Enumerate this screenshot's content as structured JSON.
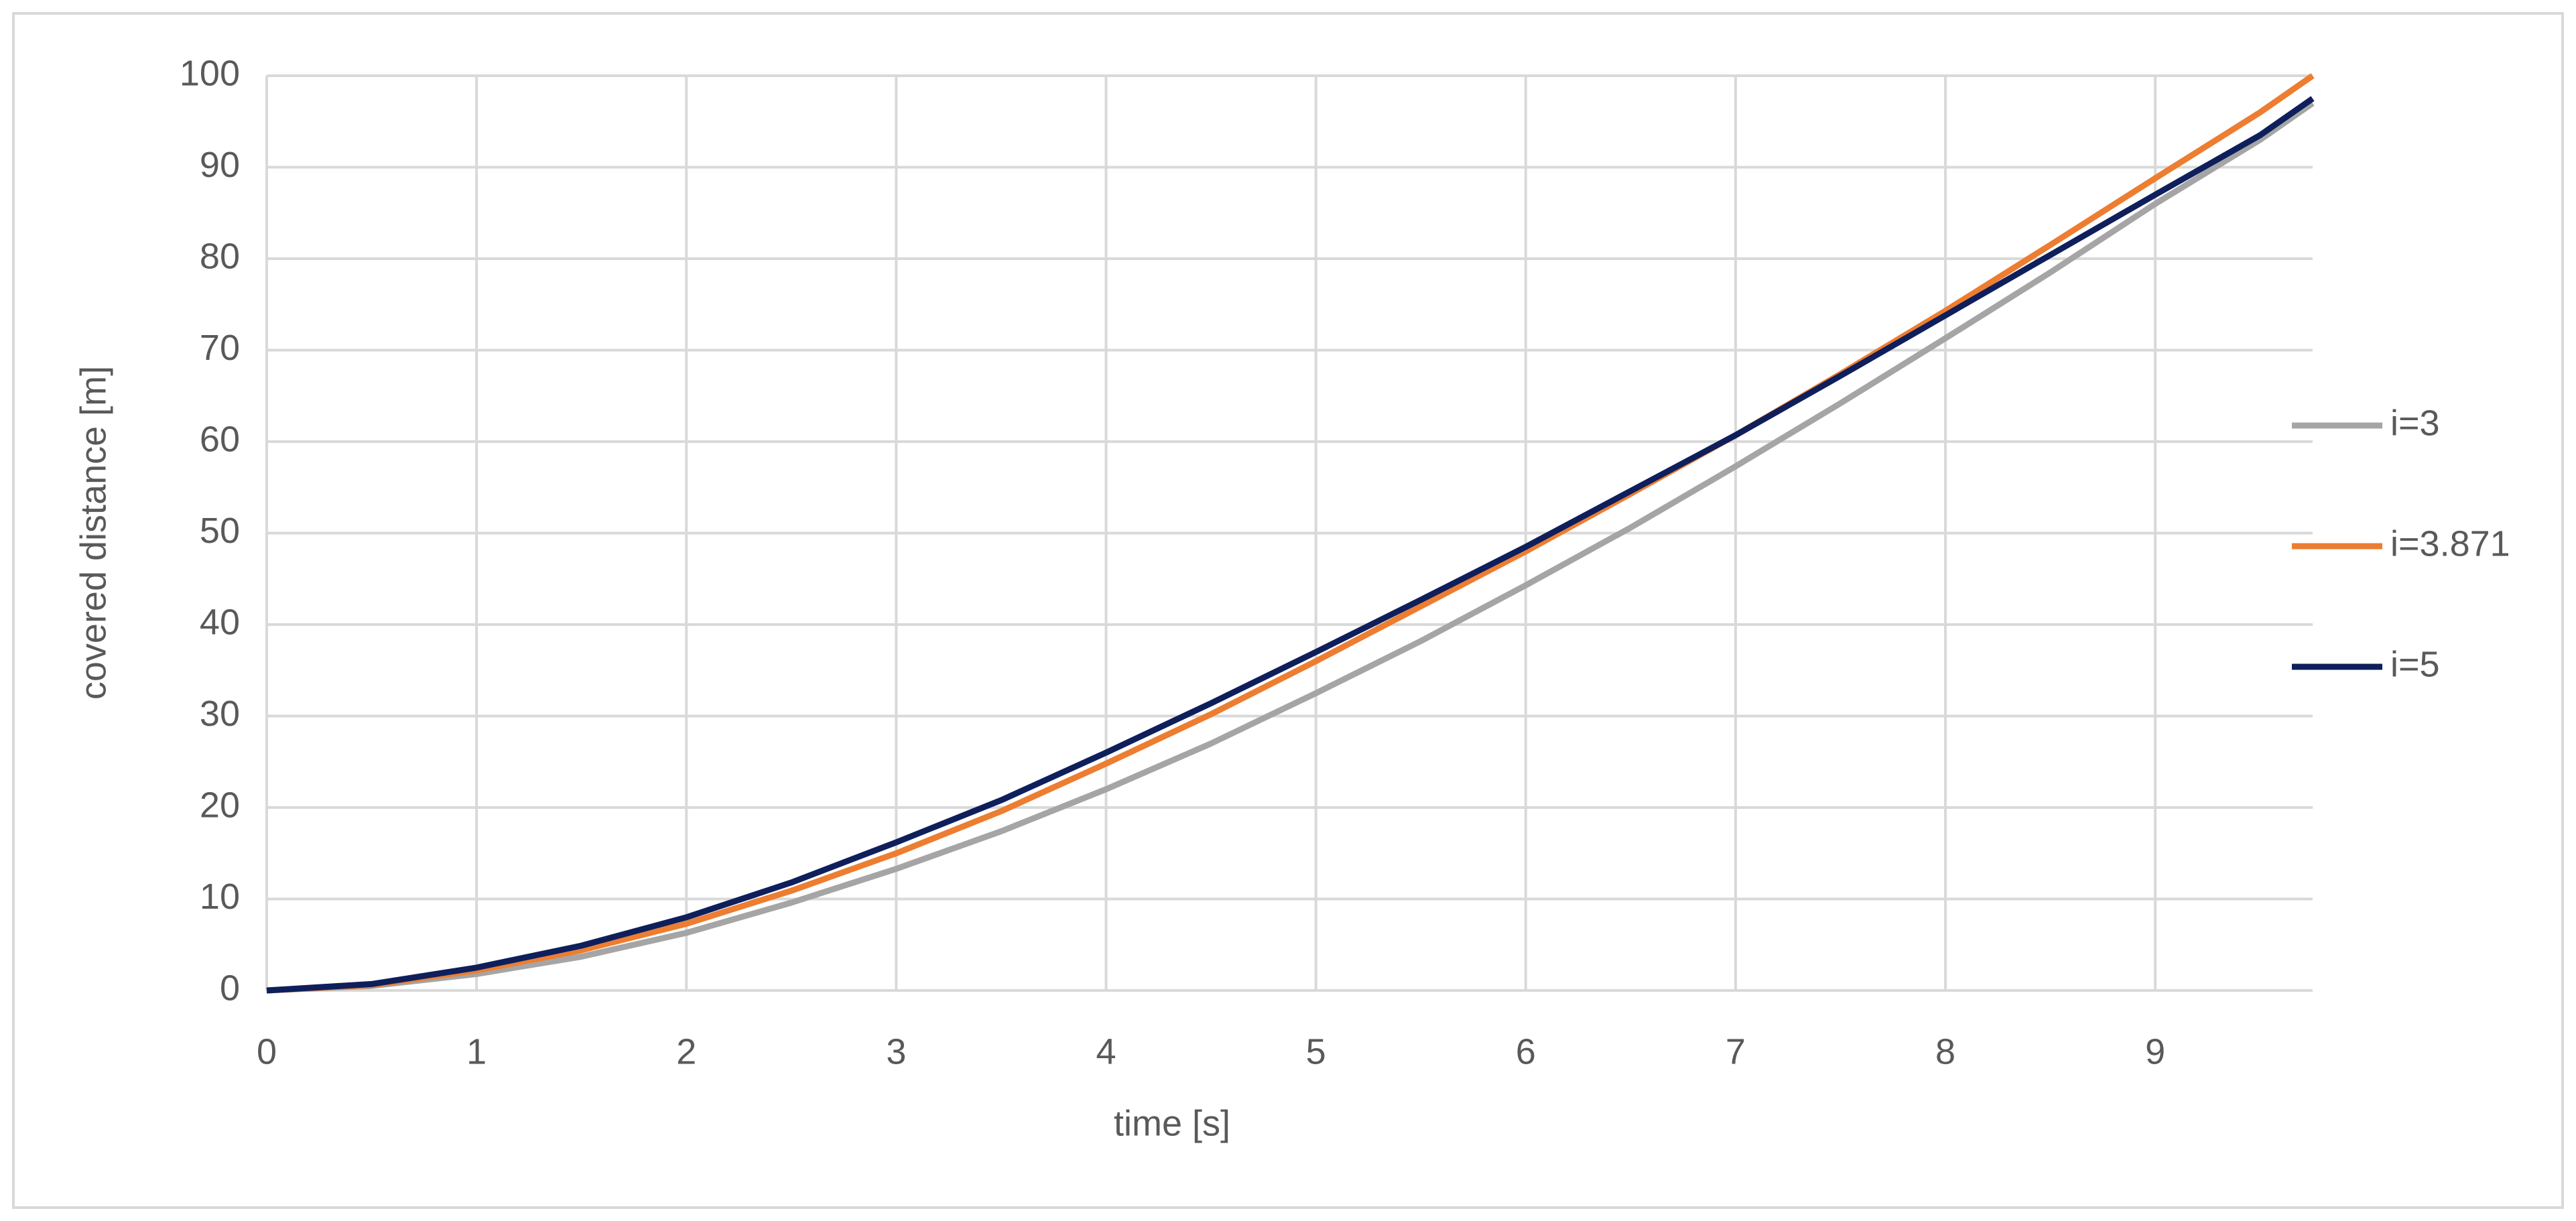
{
  "chart_data": {
    "type": "line",
    "x_label": "time [s]",
    "y_label": "covered distance [m]",
    "x": [
      0,
      0.5,
      1,
      1.5,
      2,
      2.5,
      3,
      3.5,
      4,
      4.5,
      5,
      5.5,
      6,
      6.5,
      7,
      7.5,
      8,
      8.5,
      9,
      9.5,
      9.75
    ],
    "series": [
      {
        "name": "i=3",
        "color": "#a5a5a5",
        "values": [
          0,
          0.5,
          1.8,
          3.7,
          6.3,
          9.6,
          13.3,
          17.4,
          22,
          27,
          32.5,
          38.2,
          44.3,
          50.6,
          57.3,
          64.2,
          71.3,
          78.5,
          86,
          93,
          97
        ]
      },
      {
        "name": "i=3.871",
        "color": "#ed7d31",
        "values": [
          0,
          0.6,
          2.2,
          4.4,
          7.3,
          10.9,
          15,
          19.6,
          24.8,
          30.2,
          36,
          42,
          48,
          54.3,
          60.7,
          67.4,
          74.3,
          81.5,
          88.8,
          96,
          100
        ]
      },
      {
        "name": "i=5",
        "color": "#0e1f5b",
        "values": [
          0,
          0.7,
          2.5,
          4.9,
          8,
          11.8,
          16.2,
          20.8,
          26,
          31.4,
          37,
          42.7,
          48.5,
          54.6,
          60.7,
          67.2,
          73.8,
          80.4,
          87,
          93.5,
          97.5
        ]
      }
    ],
    "xlim": [
      0,
      9.75
    ],
    "xticks": [
      0,
      1,
      2,
      3,
      4,
      5,
      6,
      7,
      8,
      9
    ],
    "ylim": [
      0,
      100
    ],
    "yticks": [
      0,
      10,
      20,
      30,
      40,
      50,
      60,
      70,
      80,
      90,
      100
    ],
    "grid": true,
    "legend": "right"
  }
}
